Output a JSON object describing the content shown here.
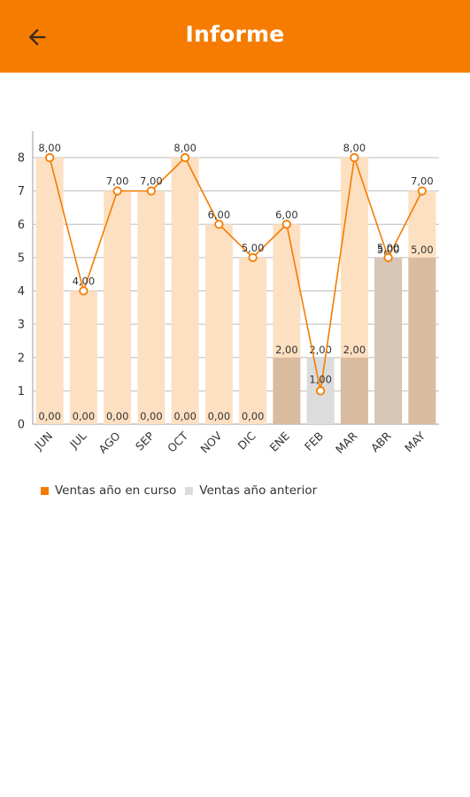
{
  "app_bar": {
    "title": "Informe",
    "back_icon": "arrow-left-icon",
    "color": "#f57c00"
  },
  "chart_data": {
    "type": "bar",
    "categories": [
      "JUN",
      "JUL",
      "AGO",
      "SEP",
      "OCT",
      "NOV",
      "DIC",
      "ENE",
      "FEB",
      "MAR",
      "ABR",
      "MAY"
    ],
    "series": [
      {
        "name": "Ventas año en curso",
        "type": "line",
        "color": "#f57c00",
        "values": [
          8.0,
          4.0,
          7.0,
          7.0,
          8.0,
          6.0,
          5.0,
          6.0,
          1.0,
          8.0,
          5.0,
          7.0
        ],
        "labels": [
          "8,00",
          "4,00",
          "7,00",
          "7,00",
          "8,00",
          "6,00",
          "5,00",
          "6,00",
          "1,00",
          "8,00",
          "5,00",
          "7,00"
        ]
      },
      {
        "name": "Ventas año anterior",
        "type": "bar",
        "color": "#d9bba0",
        "values": [
          0,
          0,
          0,
          0,
          0,
          0,
          0,
          2.0,
          2.0,
          2.0,
          5.0,
          5.0
        ],
        "labels": [
          "0,00",
          "0,00",
          "0,00",
          "0,00",
          "0,00",
          "0,00",
          "0,00",
          "2,00",
          "2,00",
          "2,00",
          "5,00",
          "5,00"
        ]
      }
    ],
    "ylim": [
      0,
      8
    ],
    "yticks": [
      "0",
      "1",
      "2",
      "3",
      "4",
      "5",
      "6",
      "7",
      "8"
    ],
    "grid": true,
    "legend_position": "bottom-left"
  },
  "legend": [
    {
      "label": "Ventas año en curso",
      "color": "#f57c00"
    },
    {
      "label": "Ventas año anterior",
      "color": "#dcdcdc"
    }
  ]
}
